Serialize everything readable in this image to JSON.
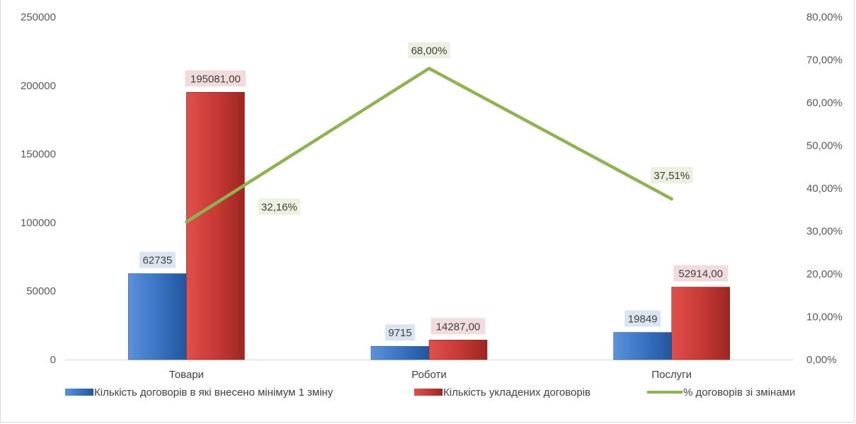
{
  "chart_data": {
    "type": "bar",
    "categories": [
      "Товари",
      "Роботи",
      "Послуги"
    ],
    "series": [
      {
        "name": "Кількість договорів в які внесено мінімум 1 зміну",
        "kind": "bar",
        "axis": "left",
        "color": "#3a74c4",
        "values": [
          62735,
          9715,
          19849
        ],
        "labels": [
          "62735",
          "9715",
          "19849"
        ],
        "label_bg": "#dbe5f1"
      },
      {
        "name": "Кількість укладених договорів",
        "kind": "bar",
        "axis": "left",
        "color": "#c83a36",
        "values": [
          195081,
          14287,
          52914
        ],
        "labels": [
          "195081,00",
          "14287,00",
          "52914,00"
        ],
        "label_bg": "#f2dcdb"
      },
      {
        "name": "% договорів зі змінами",
        "kind": "line",
        "axis": "right",
        "color": "#8fb350",
        "values": [
          32.16,
          68.0,
          37.51
        ],
        "labels": [
          "32,16%",
          "68,00%",
          "37,51%"
        ],
        "label_bg": "#ebf1de"
      }
    ],
    "y_left": {
      "ylim": [
        0,
        250000
      ],
      "ticks": [
        "0",
        "50000",
        "100000",
        "150000",
        "200000",
        "250000"
      ],
      "tick_values": [
        0,
        50000,
        100000,
        150000,
        200000,
        250000
      ]
    },
    "y_right": {
      "ylim": [
        0,
        80
      ],
      "ticks": [
        "0,00%",
        "10,00%",
        "20,00%",
        "30,00%",
        "40,00%",
        "50,00%",
        "60,00%",
        "70,00%",
        "80,00%"
      ],
      "tick_values": [
        0,
        10,
        20,
        30,
        40,
        50,
        60,
        70,
        80
      ]
    },
    "grid": false,
    "legend": "bottom",
    "title": "",
    "xlabel": "",
    "ylabel": ""
  }
}
